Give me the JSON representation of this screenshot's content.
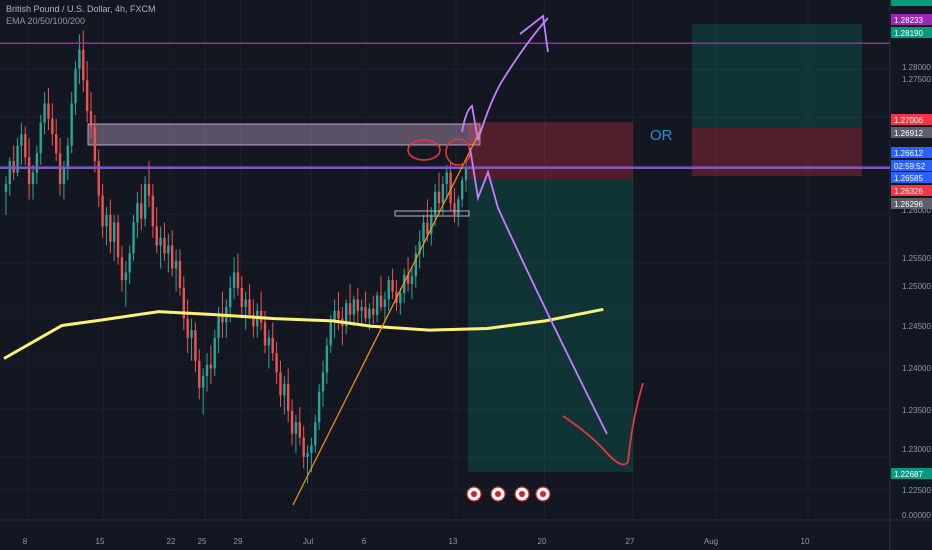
{
  "header": {
    "title": "British Pound / U.S. Dollar, 4h, FXCM",
    "indicator": "EMA 20/50/100/200"
  },
  "annotation": {
    "or_text": "OR"
  },
  "price_axis": {
    "ticks": [
      "1.28000",
      "1.27500",
      "1.26500",
      "1.26000",
      "1.25500",
      "1.25000",
      "1.24500",
      "1.24000",
      "1.23500",
      "1.23000",
      "1.22500",
      "0.00000"
    ],
    "badges": [
      {
        "text": "1.28233",
        "color": "#9c27b0"
      },
      {
        "text": "1.28190",
        "color": "#089981"
      },
      {
        "text": "1.27006",
        "color": "#f23645"
      },
      {
        "text": "1.26912",
        "color": "#5d606b"
      },
      {
        "text": "1.26612",
        "color": "#2962ff"
      },
      {
        "text": "02:59:52",
        "color": "#2962ff"
      },
      {
        "text": "1.26585",
        "color": "#2962ff"
      },
      {
        "text": "1.26326",
        "color": "#f23645"
      },
      {
        "text": "1.26296",
        "color": "#5d606b"
      },
      {
        "text": "1.22687",
        "color": "#089981"
      }
    ]
  },
  "time_axis": {
    "labels": [
      "8",
      "15",
      "22",
      "25",
      "29",
      "Jul",
      "6",
      "13",
      "20",
      "27",
      "Aug",
      "10"
    ]
  },
  "colors": {
    "bull": "#26a69a",
    "bear": "#ef5350",
    "ema": "#fff176",
    "level": "#7e57c2",
    "top_level": "#9c27b0",
    "projection": "#c77dff",
    "trendline": "#ff9800",
    "target": "#e53935"
  },
  "chart_data": {
    "type": "candlestick",
    "title": "British Pound / U.S. Dollar, 4h, FXCM",
    "ylim": [
      1.2225,
      1.286
    ],
    "horizontal_levels": [
      1.26612,
      1.28233
    ],
    "ema200": [
      [
        0,
        1.2413
      ],
      [
        15,
        1.2456
      ],
      [
        25,
        1.2463
      ],
      [
        40,
        1.2474
      ],
      [
        55,
        1.247
      ],
      [
        70,
        1.2465
      ],
      [
        85,
        1.2462
      ],
      [
        95,
        1.2455
      ],
      [
        110,
        1.245
      ],
      [
        125,
        1.2452
      ],
      [
        140,
        1.2462
      ],
      [
        155,
        1.2477
      ]
    ],
    "candles": [
      [
        1.263,
        1.265,
        1.26,
        1.264
      ],
      [
        1.264,
        1.2675,
        1.2625,
        1.267
      ],
      [
        1.267,
        1.269,
        1.2645,
        1.2655
      ],
      [
        1.2655,
        1.27,
        1.265,
        1.269
      ],
      [
        1.269,
        1.272,
        1.2665,
        1.2705
      ],
      [
        1.2705,
        1.2715,
        1.2665,
        1.2675
      ],
      [
        1.2675,
        1.27,
        1.262,
        1.264
      ],
      [
        1.264,
        1.2665,
        1.262,
        1.2655
      ],
      [
        1.2655,
        1.269,
        1.264,
        1.268
      ],
      [
        1.268,
        1.273,
        1.2665,
        1.272
      ],
      [
        1.272,
        1.276,
        1.2705,
        1.2745
      ],
      [
        1.2745,
        1.2765,
        1.271,
        1.2725
      ],
      [
        1.2725,
        1.2745,
        1.269,
        1.2705
      ],
      [
        1.2705,
        1.2725,
        1.267,
        1.268
      ],
      [
        1.268,
        1.27,
        1.2625,
        1.264
      ],
      [
        1.264,
        1.267,
        1.262,
        1.266
      ],
      [
        1.266,
        1.27,
        1.2645,
        1.269
      ],
      [
        1.269,
        1.276,
        1.268,
        1.2745
      ],
      [
        1.2745,
        1.28,
        1.273,
        1.279
      ],
      [
        1.279,
        1.2835,
        1.277,
        1.2815
      ],
      [
        1.2815,
        1.284,
        1.276,
        1.2775
      ],
      [
        1.2775,
        1.28,
        1.272,
        1.2735
      ],
      [
        1.2735,
        1.276,
        1.27,
        1.2715
      ],
      [
        1.2715,
        1.273,
        1.2655,
        1.267
      ],
      [
        1.267,
        1.2685,
        1.261,
        1.2625
      ],
      [
        1.2625,
        1.264,
        1.257,
        1.2585
      ],
      [
        1.2585,
        1.261,
        1.256,
        1.26
      ],
      [
        1.26,
        1.262,
        1.255,
        1.2565
      ],
      [
        1.2565,
        1.26,
        1.254,
        1.259
      ],
      [
        1.259,
        1.26,
        1.2535,
        1.2545
      ],
      [
        1.2545,
        1.256,
        1.25,
        1.2515
      ],
      [
        1.2515,
        1.254,
        1.248,
        1.2525
      ],
      [
        1.2525,
        1.256,
        1.251,
        1.255
      ],
      [
        1.255,
        1.26,
        1.254,
        1.259
      ],
      [
        1.259,
        1.263,
        1.257,
        1.2615
      ],
      [
        1.2615,
        1.264,
        1.258,
        1.2595
      ],
      [
        1.2595,
        1.265,
        1.2585,
        1.264
      ],
      [
        1.264,
        1.267,
        1.261,
        1.2625
      ],
      [
        1.2625,
        1.264,
        1.257,
        1.2585
      ],
      [
        1.2585,
        1.261,
        1.255,
        1.256
      ],
      [
        1.256,
        1.2585,
        1.253,
        1.257
      ],
      [
        1.257,
        1.259,
        1.254,
        1.255
      ],
      [
        1.255,
        1.2575,
        1.2525,
        1.256
      ],
      [
        1.256,
        1.258,
        1.252,
        1.253
      ],
      [
        1.253,
        1.2555,
        1.25,
        1.254
      ],
      [
        1.254,
        1.2555,
        1.2495,
        1.2505
      ],
      [
        1.2505,
        1.252,
        1.245,
        1.2465
      ],
      [
        1.2465,
        1.249,
        1.242,
        1.244
      ],
      [
        1.244,
        1.2465,
        1.241,
        1.245
      ],
      [
        1.245,
        1.246,
        1.2395,
        1.241
      ],
      [
        1.241,
        1.2425,
        1.236,
        1.2375
      ],
      [
        1.2375,
        1.24,
        1.234,
        1.239
      ],
      [
        1.239,
        1.242,
        1.237,
        1.2405
      ],
      [
        1.2405,
        1.243,
        1.238,
        1.24
      ],
      [
        1.24,
        1.245,
        1.239,
        1.244
      ],
      [
        1.244,
        1.248,
        1.242,
        1.247
      ],
      [
        1.247,
        1.25,
        1.244,
        1.246
      ],
      [
        1.246,
        1.249,
        1.244,
        1.248
      ],
      [
        1.248,
        1.252,
        1.246,
        1.2505
      ],
      [
        1.2505,
        1.2545,
        1.249,
        1.2525
      ],
      [
        1.2525,
        1.255,
        1.2495,
        1.2505
      ],
      [
        1.2505,
        1.252,
        1.2465,
        1.248
      ],
      [
        1.248,
        1.25,
        1.245,
        1.249
      ],
      [
        1.249,
        1.251,
        1.2465,
        1.247
      ],
      [
        1.247,
        1.249,
        1.244,
        1.2455
      ],
      [
        1.2455,
        1.2485,
        1.244,
        1.2475
      ],
      [
        1.2475,
        1.25,
        1.245,
        1.246
      ],
      [
        1.246,
        1.2475,
        1.242,
        1.243
      ],
      [
        1.243,
        1.245,
        1.24,
        1.244
      ],
      [
        1.244,
        1.246,
        1.241,
        1.242
      ],
      [
        1.242,
        1.2435,
        1.238,
        1.2395
      ],
      [
        1.2395,
        1.241,
        1.235,
        1.2365
      ],
      [
        1.2365,
        1.239,
        1.234,
        1.238
      ],
      [
        1.238,
        1.24,
        1.233,
        1.2345
      ],
      [
        1.2345,
        1.236,
        1.23,
        1.2315
      ],
      [
        1.2315,
        1.234,
        1.229,
        1.233
      ],
      [
        1.233,
        1.235,
        1.23,
        1.231
      ],
      [
        1.231,
        1.2325,
        1.227,
        1.2285
      ],
      [
        1.2285,
        1.23,
        1.225,
        1.229
      ],
      [
        1.229,
        1.231,
        1.2265,
        1.23
      ],
      [
        1.23,
        1.234,
        1.229,
        1.233
      ],
      [
        1.233,
        1.238,
        1.232,
        1.237
      ],
      [
        1.237,
        1.241,
        1.235,
        1.2395
      ],
      [
        1.2395,
        1.244,
        1.238,
        1.243
      ],
      [
        1.243,
        1.247,
        1.242,
        1.246
      ],
      [
        1.246,
        1.249,
        1.244,
        1.2475
      ],
      [
        1.2475,
        1.25,
        1.245,
        1.2465
      ],
      [
        1.2465,
        1.248,
        1.243,
        1.2455
      ],
      [
        1.2455,
        1.249,
        1.2445,
        1.2485
      ],
      [
        1.2485,
        1.251,
        1.246,
        1.247
      ],
      [
        1.247,
        1.2495,
        1.2455,
        1.249
      ],
      [
        1.249,
        1.2505,
        1.246,
        1.2475
      ],
      [
        1.2475,
        1.249,
        1.2455,
        1.248
      ],
      [
        1.248,
        1.25,
        1.246,
        1.2465
      ],
      [
        1.2465,
        1.2485,
        1.245,
        1.2478
      ],
      [
        1.2478,
        1.2495,
        1.2458,
        1.247
      ],
      [
        1.247,
        1.25,
        1.246,
        1.2495
      ],
      [
        1.2495,
        1.252,
        1.2475,
        1.248
      ],
      [
        1.248,
        1.25,
        1.246,
        1.249
      ],
      [
        1.249,
        1.252,
        1.2475,
        1.2515
      ],
      [
        1.2515,
        1.253,
        1.249,
        1.25
      ],
      [
        1.25,
        1.2515,
        1.2475,
        1.2485
      ],
      [
        1.2485,
        1.2505,
        1.247,
        1.2498
      ],
      [
        1.2498,
        1.253,
        1.2485,
        1.2522
      ],
      [
        1.2522,
        1.2545,
        1.25,
        1.251
      ],
      [
        1.251,
        1.253,
        1.249,
        1.252
      ],
      [
        1.252,
        1.256,
        1.2505,
        1.255
      ],
      [
        1.255,
        1.258,
        1.253,
        1.2565
      ],
      [
        1.2565,
        1.26,
        1.2545,
        1.259
      ],
      [
        1.259,
        1.262,
        1.2565,
        1.2575
      ],
      [
        1.2575,
        1.261,
        1.256,
        1.26
      ],
      [
        1.26,
        1.264,
        1.2585,
        1.263
      ],
      [
        1.263,
        1.2655,
        1.26,
        1.2615
      ],
      [
        1.2615,
        1.265,
        1.26,
        1.264
      ],
      [
        1.264,
        1.2665,
        1.262,
        1.2655
      ],
      [
        1.2655,
        1.2668,
        1.2605,
        1.2615
      ],
      [
        1.2615,
        1.2635,
        1.259,
        1.26
      ],
      [
        1.26,
        1.2625,
        1.2585,
        1.262
      ],
      [
        1.262,
        1.265,
        1.261,
        1.2645
      ],
      [
        1.2645,
        1.267,
        1.263,
        1.266
      ]
    ]
  }
}
